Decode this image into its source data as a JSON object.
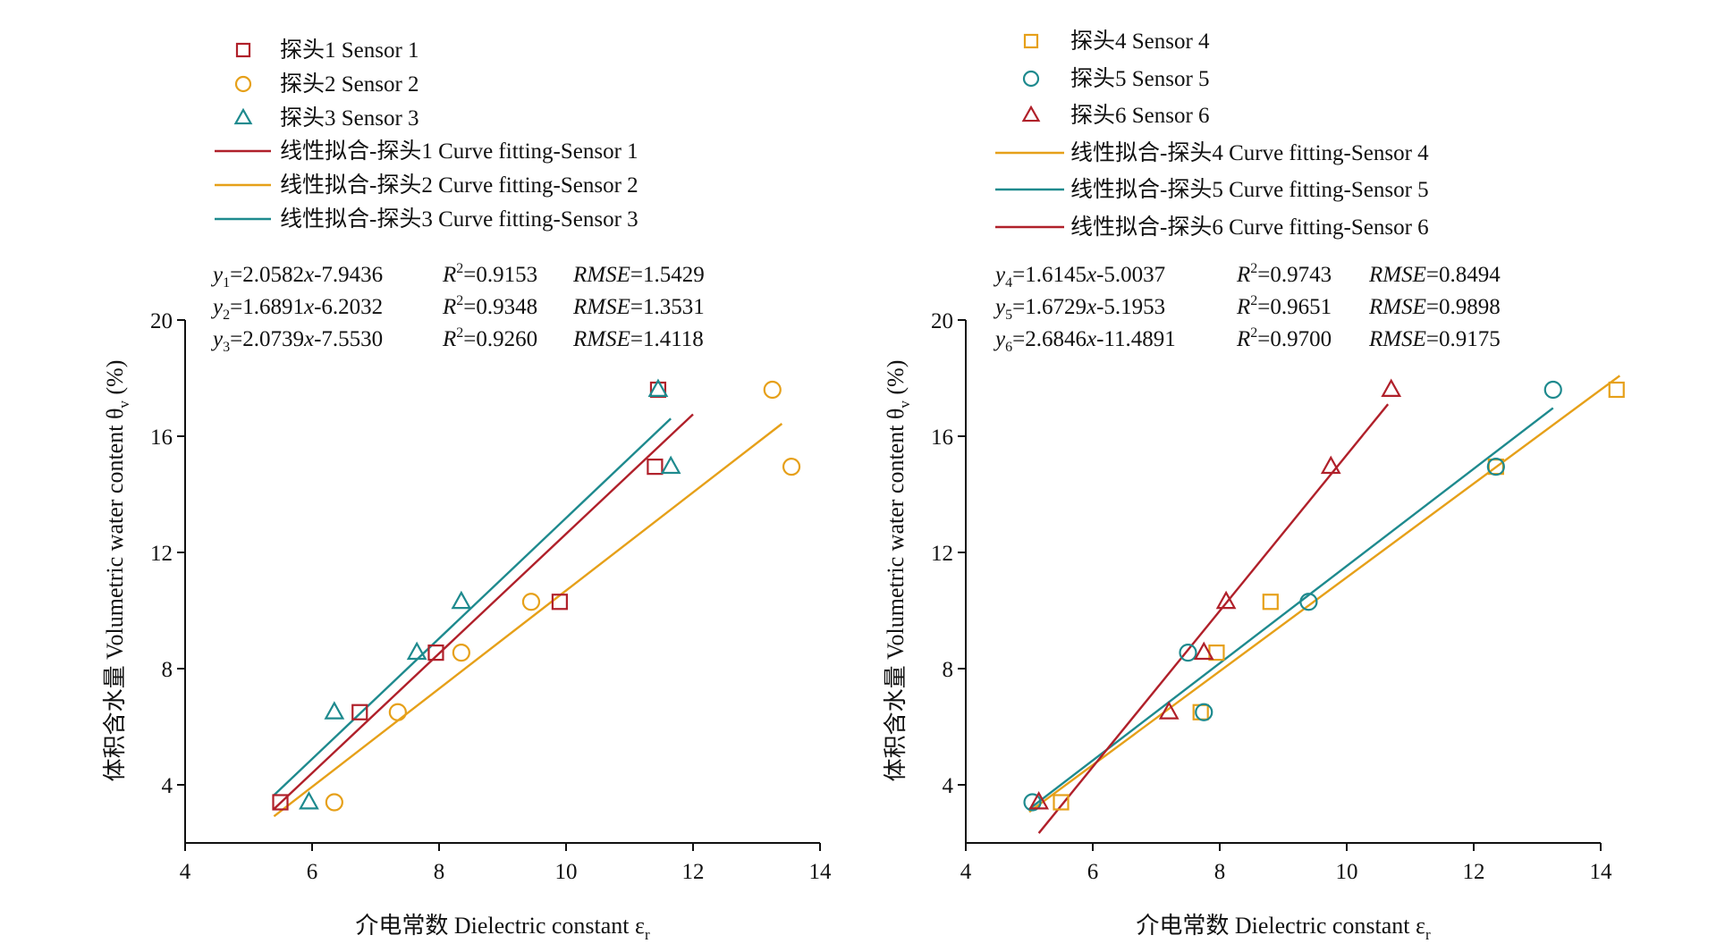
{
  "chart_data": [
    {
      "type": "scatter",
      "panel": "left",
      "xlabel": "介电常数 Dielectric constant εr",
      "ylabel": "体积含水量 Volumetric water content θv (%)",
      "xlim": [
        4,
        14
      ],
      "ylim": [
        2,
        20
      ],
      "xticks": [
        "4",
        "6",
        "8",
        "10",
        "12",
        "14"
      ],
      "yticks": [
        "4",
        "8",
        "12",
        "16",
        "20"
      ],
      "legend_placement": "top",
      "series": [
        {
          "name": "探头1 Sensor 1",
          "marker": "square",
          "color": "#b0202a",
          "points": [
            [
              5.5,
              3.4
            ],
            [
              6.75,
              6.5
            ],
            [
              7.95,
              8.55
            ],
            [
              9.9,
              10.3
            ],
            [
              11.4,
              14.95
            ],
            [
              11.45,
              17.6
            ]
          ]
        },
        {
          "name": "探头2 Sensor 2",
          "marker": "circle",
          "color": "#e6a019",
          "points": [
            [
              6.35,
              3.4
            ],
            [
              7.35,
              6.5
            ],
            [
              8.35,
              8.55
            ],
            [
              9.45,
              10.3
            ],
            [
              13.55,
              14.95
            ],
            [
              13.25,
              17.6
            ]
          ]
        },
        {
          "name": "探头3 Sensor 3",
          "marker": "triangle",
          "color": "#1e8a8e",
          "points": [
            [
              5.95,
              3.4
            ],
            [
              6.35,
              6.5
            ],
            [
              7.65,
              8.55
            ],
            [
              8.35,
              10.3
            ],
            [
              11.65,
              14.95
            ],
            [
              11.45,
              17.6
            ]
          ]
        }
      ],
      "fits": [
        {
          "name": "线性拟合-探头1  Curve fitting-Sensor 1",
          "color": "#b0202a",
          "slope": 2.0582,
          "intercept": -7.9436,
          "x_range": [
            5.4,
            12.0
          ]
        },
        {
          "name": "线性拟合-探头2  Curve fitting-Sensor 2",
          "color": "#e6a019",
          "slope": 1.6891,
          "intercept": -6.2032,
          "x_range": [
            5.4,
            13.4
          ]
        },
        {
          "name": "线性拟合-探头3  Curve fitting-Sensor 3",
          "color": "#1e8a8e",
          "slope": 2.0739,
          "intercept": -7.553,
          "x_range": [
            5.4,
            11.65
          ]
        }
      ],
      "equations": [
        {
          "y": "y",
          "sub": "1",
          "eq": "=2.0582",
          "xv": "x",
          "c": "-7.9436",
          "r2": "=0.9153",
          "rmse": "=1.5429"
        },
        {
          "y": "y",
          "sub": "2",
          "eq": "=1.6891",
          "xv": "x",
          "c": "-6.2032",
          "r2": "=0.9348",
          "rmse": "=1.3531"
        },
        {
          "y": "y",
          "sub": "3",
          "eq": "=2.0739",
          "xv": "x",
          "c": "-7.5530",
          "r2": "=0.9260",
          "rmse": "=1.4118"
        }
      ]
    },
    {
      "type": "scatter",
      "panel": "right",
      "xlabel": "介电常数 Dielectric constant εr",
      "ylabel": "体积含水量 Volumetric water content θv (%)",
      "xlim": [
        4,
        14
      ],
      "ylim": [
        2,
        20
      ],
      "xticks": [
        "4",
        "6",
        "8",
        "10",
        "12",
        "14"
      ],
      "yticks": [
        "4",
        "8",
        "12",
        "16",
        "20"
      ],
      "legend_placement": "top",
      "series": [
        {
          "name": "探头4 Sensor 4",
          "marker": "square",
          "color": "#e6a019",
          "points": [
            [
              5.5,
              3.4
            ],
            [
              7.7,
              6.5
            ],
            [
              7.95,
              8.55
            ],
            [
              8.8,
              10.3
            ],
            [
              12.35,
              14.95
            ],
            [
              14.25,
              17.6
            ]
          ]
        },
        {
          "name": "探头5 Sensor 5",
          "marker": "circle",
          "color": "#1e8a8e",
          "points": [
            [
              5.05,
              3.4
            ],
            [
              7.75,
              6.5
            ],
            [
              7.5,
              8.55
            ],
            [
              9.4,
              10.3
            ],
            [
              12.35,
              14.95
            ],
            [
              13.25,
              17.6
            ]
          ]
        },
        {
          "name": "探头6 Sensor 6",
          "marker": "triangle",
          "color": "#b0202a",
          "points": [
            [
              5.15,
              3.4
            ],
            [
              7.2,
              6.5
            ],
            [
              7.75,
              8.55
            ],
            [
              8.1,
              10.3
            ],
            [
              9.75,
              14.95
            ],
            [
              10.7,
              17.6
            ]
          ]
        }
      ],
      "fits": [
        {
          "name": "线性拟合-探头4  Curve fitting-Sensor 4",
          "color": "#e6a019",
          "slope": 1.6145,
          "intercept": -5.0037,
          "x_range": [
            5.0,
            14.3
          ]
        },
        {
          "name": "线性拟合-探头5  Curve fitting-Sensor 5",
          "color": "#1e8a8e",
          "slope": 1.6729,
          "intercept": -5.1953,
          "x_range": [
            5.0,
            13.25
          ]
        },
        {
          "name": "线性拟合-探头6  Curve fitting-Sensor 6",
          "color": "#b0202a",
          "slope": 2.6846,
          "intercept": -11.4891,
          "x_range": [
            5.15,
            10.65
          ]
        }
      ],
      "equations": [
        {
          "y": "y",
          "sub": "4",
          "eq": "=1.6145",
          "xv": "x",
          "c": "-5.0037",
          "r2": "=0.9743",
          "rmse": "=0.8494"
        },
        {
          "y": "y",
          "sub": "5",
          "eq": "=1.6729",
          "xv": "x",
          "c": "-5.1953",
          "r2": "=0.9651",
          "rmse": "=0.9898"
        },
        {
          "y": "y",
          "sub": "6",
          "eq": "=2.6846",
          "xv": "x",
          "c": "-11.4891",
          "r2": "=0.9700",
          "rmse": "=0.9175"
        }
      ]
    }
  ]
}
